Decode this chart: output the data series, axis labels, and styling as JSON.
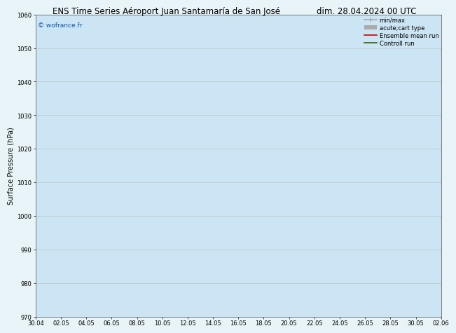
{
  "title": "ENS Time Series Aéroport Juan Santamaría de San José",
  "date_label": "dim. 28.04.2024 00 UTC",
  "ylabel": "Surface Pressure (hPa)",
  "ylim": [
    970,
    1060
  ],
  "yticks": [
    970,
    980,
    990,
    1000,
    1010,
    1020,
    1030,
    1040,
    1050,
    1060
  ],
  "watermark": "© wofrance.fr",
  "legend_entries": [
    {
      "label": "min/max",
      "color": "#aaaaaa",
      "lw": 1.2
    },
    {
      "label": "acute;cart type",
      "color": "#aaaaaa",
      "lw": 4
    },
    {
      "label": "Ensemble mean run",
      "color": "#cc0000",
      "lw": 1.0
    },
    {
      "label": "Controll run",
      "color": "#336600",
      "lw": 1.0
    }
  ],
  "background_color": "#e8f4f8",
  "plot_bg_color": "#ffffff",
  "band_color": "#cce5f5",
  "grid_color": "#bbbbbb",
  "xtick_labels": [
    "30.04",
    "02.05",
    "04.05",
    "06.05",
    "08.05",
    "10.05",
    "12.05",
    "14.05",
    "16.05",
    "18.05",
    "20.05",
    "22.05",
    "24.05",
    "26.05",
    "28.05",
    "30.05",
    "02.06"
  ],
  "title_fontsize": 8.5,
  "date_fontsize": 8.5,
  "tick_fontsize": 6.0,
  "label_fontsize": 7.0,
  "legend_fontsize": 6.0
}
